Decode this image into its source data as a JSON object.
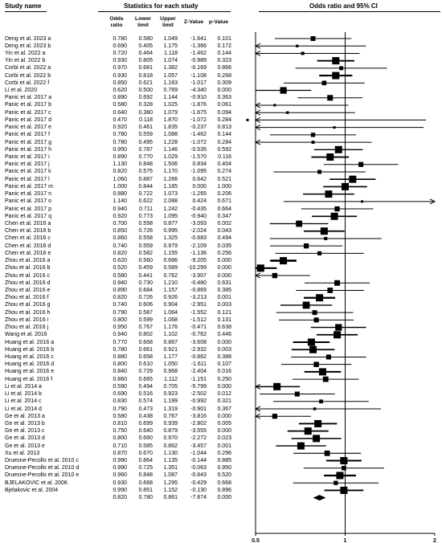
{
  "headers": {
    "study_name": "Study name",
    "statistics": "Statistics for each study",
    "plot": "Odds ratio and 95% CI",
    "odds_ratio": "Odds ratio",
    "lower_limit": "Lower limit",
    "upper_limit": "Upper limit",
    "z_value": "Z-Value",
    "p_value": "p-Value"
  },
  "chart_data": {
    "type": "forest",
    "xscale": "log",
    "xlim": [
      0.5,
      2
    ],
    "xticks": [
      "0.5",
      "1",
      "2"
    ],
    "reference_line": 1,
    "rows": [
      {
        "study": "Deng  et  al. 2023 a",
        "or": "0.780",
        "lower": "0.580",
        "upper": "1.049",
        "z": "-1.641",
        "p": "0.101"
      },
      {
        "study": "Deng  et  al. 2023 b",
        "or": "0.690",
        "lower": "0.405",
        "upper": "1.175",
        "z": "-1.366",
        "p": "0.172"
      },
      {
        "study": "Yin  et  al. 2022 a",
        "or": "0.720",
        "lower": "0.464",
        "upper": "1.118",
        "z": "-1.462",
        "p": "0.144"
      },
      {
        "study": "Yin  et  al. 2022 b",
        "or": "0.930",
        "lower": "0.805",
        "upper": "1.074",
        "z": "-0.989",
        "p": "0.323"
      },
      {
        "study": "Corbi  et  al. 2022 a",
        "or": "0.970",
        "lower": "0.681",
        "upper": "1.382",
        "z": "-0.169",
        "p": "0.866"
      },
      {
        "study": "Corbi  et  al. 2022 b",
        "or": "0.930",
        "lower": "0.818",
        "upper": "1.057",
        "z": "-1.108",
        "p": "0.268"
      },
      {
        "study": "Corbi  et  al. 2022 f",
        "or": "0.850",
        "lower": "0.621",
        "upper": "1.163",
        "z": "-1.017",
        "p": "0.309"
      },
      {
        "study": "Li  et  al. 2020",
        "or": "0.620",
        "lower": "0.500",
        "upper": "0.769",
        "z": "-4.340",
        "p": "0.000"
      },
      {
        "study": "Panic  et  al. 2017 a",
        "or": "0.890",
        "lower": "0.692",
        "upper": "1.144",
        "z": "-0.910",
        "p": "0.363"
      },
      {
        "study": "Panic  et  al. 2017 b",
        "or": "0.580",
        "lower": "0.328",
        "upper": "1.025",
        "z": "-1.876",
        "p": "0.061"
      },
      {
        "study": "Panic  et  al. 2017 c",
        "or": "0.640",
        "lower": "0.380",
        "upper": "1.079",
        "z": "-1.675",
        "p": "0.094"
      },
      {
        "study": "Panic  et  al. 2017 d",
        "or": "0.470",
        "lower": "0.118",
        "upper": "1.870",
        "z": "-1.072",
        "p": "0.284"
      },
      {
        "study": "Panic  et  al. 2017 e",
        "or": "0.920",
        "lower": "0.461",
        "upper": "1.835",
        "z": "-0.237",
        "p": "0.813"
      },
      {
        "study": "Panic  et  al. 2017 f",
        "or": "0.780",
        "lower": "0.559",
        "upper": "1.088",
        "z": "-1.462",
        "p": "0.144"
      },
      {
        "study": "Panic  et  al. 2017 g",
        "or": "0.780",
        "lower": "0.495",
        "upper": "1.228",
        "z": "-1.072",
        "p": "0.284"
      },
      {
        "study": "Panic  et  al. 2017 h",
        "or": "0.950",
        "lower": "0.787",
        "upper": "1.146",
        "z": "-0.535",
        "p": "0.592"
      },
      {
        "study": "Panic  et  al. 2017 i",
        "or": "0.890",
        "lower": "0.770",
        "upper": "1.029",
        "z": "-1.570",
        "p": "0.116"
      },
      {
        "study": "Panic  et  al. 2017 j",
        "or": "1.130",
        "lower": "0.848",
        "upper": "1.506",
        "z": "0.834",
        "p": "0.404"
      },
      {
        "study": "Panic  et  al. 2017 k",
        "or": "0.820",
        "lower": "0.575",
        "upper": "1.170",
        "z": "-1.095",
        "p": "0.274"
      },
      {
        "study": "Panic  et  al. 2017 l",
        "or": "1.060",
        "lower": "0.887",
        "upper": "1.266",
        "z": "0.642",
        "p": "0.521"
      },
      {
        "study": "Panic  et  al. 2017 m",
        "or": "1.000",
        "lower": "0.844",
        "upper": "1.185",
        "z": "0.000",
        "p": "1.000"
      },
      {
        "study": "Panic  et  al. 2017 n",
        "or": "0.880",
        "lower": "0.722",
        "upper": "1.073",
        "z": "-1.265",
        "p": "0.206"
      },
      {
        "study": "Panic  et  al. 2017 o",
        "or": "1.140",
        "lower": "0.622",
        "upper": "2.088",
        "z": "0.424",
        "p": "0.671"
      },
      {
        "study": "Panic  et  al. 2017 p",
        "or": "0.940",
        "lower": "0.711",
        "upper": "1.242",
        "z": "-0.435",
        "p": "0.664"
      },
      {
        "study": "Panic  et  al. 2017 q",
        "or": "0.920",
        "lower": "0.773",
        "upper": "1.095",
        "z": "-0.940",
        "p": "0.347"
      },
      {
        "study": "Chen  et  al. 2016 a",
        "or": "0.700",
        "lower": "0.558",
        "upper": "0.877",
        "z": "-3.093",
        "p": "0.002"
      },
      {
        "study": "Chen  et  al. 2016 b",
        "or": "0.850",
        "lower": "0.726",
        "upper": "0.995",
        "z": "-2.024",
        "p": "0.043"
      },
      {
        "study": "Chen  et  al. 2016 c",
        "or": "0.860",
        "lower": "0.558",
        "upper": "1.325",
        "z": "-0.683",
        "p": "0.494"
      },
      {
        "study": "Chen  et  al. 2016 d",
        "or": "0.740",
        "lower": "0.559",
        "upper": "0.979",
        "z": "-2.109",
        "p": "0.035"
      },
      {
        "study": "Chen  et  al. 2016 e",
        "or": "0.820",
        "lower": "0.582",
        "upper": "1.155",
        "z": "-1.136",
        "p": "0.256"
      },
      {
        "study": "Zhou  et  al. 2016 a",
        "or": "0.620",
        "lower": "0.560",
        "upper": "0.686",
        "z": "-9.205",
        "p": "0.000"
      },
      {
        "study": "Zhou  et  al. 2016 b",
        "or": "0.520",
        "lower": "0.459",
        "upper": "0.589",
        "z": "-10.299",
        "p": "0.000"
      },
      {
        "study": "Zhou  et  al. 2016 c",
        "or": "0.580",
        "lower": "0.441",
        "upper": "0.762",
        "z": "-3.907",
        "p": "0.000"
      },
      {
        "study": "Zhou  et  al. 2016 d",
        "or": "0.940",
        "lower": "0.730",
        "upper": "1.210",
        "z": "-0.480",
        "p": "0.631"
      },
      {
        "study": "Zhou  et  al. 2016 e",
        "or": "0.890",
        "lower": "0.684",
        "upper": "1.157",
        "z": "-0.869",
        "p": "0.385"
      },
      {
        "study": "Zhou  et  al. 2016 f",
        "or": "0.820",
        "lower": "0.726",
        "upper": "0.926",
        "z": "-3.213",
        "p": "0.001"
      },
      {
        "study": "Zhou  et  al. 2016 g",
        "or": "0.740",
        "lower": "0.606",
        "upper": "0.904",
        "z": "-2.951",
        "p": "0.003"
      },
      {
        "study": "Zhou  et  al. 2016 h",
        "or": "0.790",
        "lower": "0.587",
        "upper": "1.064",
        "z": "-1.552",
        "p": "0.121"
      },
      {
        "study": "Zhou  et  al. 2016 i",
        "or": "0.800",
        "lower": "0.599",
        "upper": "1.068",
        "z": "-1.512",
        "p": "0.131"
      },
      {
        "study": "Zhou  et  al. 2016 j",
        "or": "0.950",
        "lower": "0.767",
        "upper": "1.176",
        "z": "-0.471",
        "p": "0.638"
      },
      {
        "study": "Wang  et  al. 2016",
        "or": "0.940",
        "lower": "0.802",
        "upper": "1.102",
        "z": "-0.762",
        "p": "0.446"
      },
      {
        "study": "Huang  et  al. 2016 a",
        "or": "0.770",
        "lower": "0.668",
        "upper": "0.887",
        "z": "-3.608",
        "p": "0.000"
      },
      {
        "study": "Huang  et  al. 2016 b",
        "or": "0.780",
        "lower": "0.661",
        "upper": "0.921",
        "z": "-2.932",
        "p": "0.003"
      },
      {
        "study": "Huang  et  al. 2016 c",
        "or": "0.880",
        "lower": "0.658",
        "upper": "1.177",
        "z": "-0.862",
        "p": "0.388"
      },
      {
        "study": "Huang  et  al. 2016 d",
        "or": "0.800",
        "lower": "0.610",
        "upper": "1.050",
        "z": "-1.611",
        "p": "0.107"
      },
      {
        "study": "Huang  et  al. 2016 e",
        "or": "0.840",
        "lower": "0.729",
        "upper": "0.968",
        "z": "-2.404",
        "p": "0.016"
      },
      {
        "study": "Huang  et  al. 2016 f",
        "or": "0.860",
        "lower": "0.665",
        "upper": "1.112",
        "z": "-1.151",
        "p": "0.250"
      },
      {
        "study": "Li  et  al. 2014 a",
        "or": "0.590",
        "lower": "0.494",
        "upper": "0.705",
        "z": "-5.799",
        "p": "0.000"
      },
      {
        "study": "Li  et  al. 2014 b",
        "or": "0.690",
        "lower": "0.516",
        "upper": "0.923",
        "z": "-2.502",
        "p": "0.012"
      },
      {
        "study": "Li  et  al. 2014 c",
        "or": "0.830",
        "lower": "0.574",
        "upper": "1.199",
        "z": "-0.992",
        "p": "0.321"
      },
      {
        "study": "Li  et  al. 2014 d",
        "or": "0.790",
        "lower": "0.473",
        "upper": "1.319",
        "z": "-0.901",
        "p": "0.367"
      },
      {
        "study": "Ge  et  al. 2013 a",
        "or": "0.580",
        "lower": "0.438",
        "upper": "0.767",
        "z": "-3.816",
        "p": "0.000"
      },
      {
        "study": "Ge  et  al. 2013 b",
        "or": "0.810",
        "lower": "0.699",
        "upper": "0.939",
        "z": "-2.802",
        "p": "0.005"
      },
      {
        "study": "Ge  et  al. 2013 c",
        "or": "0.750",
        "lower": "0.640",
        "upper": "0.879",
        "z": "-3.555",
        "p": "0.000"
      },
      {
        "study": "Ge  et  al. 2013 d",
        "or": "0.800",
        "lower": "0.660",
        "upper": "0.970",
        "z": "-2.272",
        "p": "0.023"
      },
      {
        "study": "Ge  et  al. 2013 e",
        "or": "0.710",
        "lower": "0.585",
        "upper": "0.862",
        "z": "-3.457",
        "p": "0.001"
      },
      {
        "study": "Xu  et  al. 2013",
        "or": "0.870",
        "lower": "0.670",
        "upper": "1.130",
        "z": "-1.044",
        "p": "0.296"
      },
      {
        "study": "Druesne-Pecollo  et  al. 2010 c",
        "or": "0.990",
        "lower": "0.864",
        "upper": "1.135",
        "z": "-0.144",
        "p": "0.885"
      },
      {
        "study": "Druesne-Pecollo  et  al. 2010 d",
        "or": "0.990",
        "lower": "0.725",
        "upper": "1.351",
        "z": "-0.063",
        "p": "0.950"
      },
      {
        "study": "Druesne-Pecollo  et  al. 2010 e",
        "or": "0.960",
        "lower": "0.848",
        "upper": "1.087",
        "z": "-0.643",
        "p": "0.520"
      },
      {
        "study": "BJELAKOVIC  et  al. 2006",
        "or": "0.930",
        "lower": "0.668",
        "upper": "1.295",
        "z": "-0.429",
        "p": "0.668"
      },
      {
        "study": "Bjelakovic  et  al. 2004",
        "or": "0.990",
        "lower": "0.851",
        "upper": "1.152",
        "z": "-0.130",
        "p": "0.896"
      }
    ],
    "summary": {
      "study": "",
      "or": "0.820",
      "lower": "0.780",
      "upper": "0.861",
      "z": "-7.874",
      "p": "0.000"
    }
  }
}
